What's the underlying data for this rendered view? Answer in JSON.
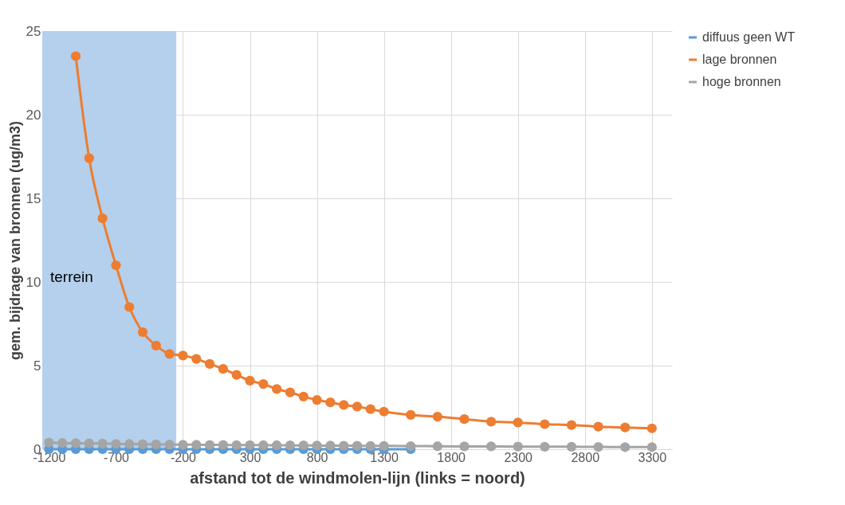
{
  "chart_data": {
    "type": "line",
    "xlabel": "afstand tot de windmolen-lijn  (links = noord)",
    "ylabel": "gem. bijdrage van bronnen  (ug/m3)",
    "x": [
      -1200,
      -1100,
      -1000,
      -900,
      -800,
      -700,
      -600,
      -500,
      -400,
      -300,
      -200,
      -100,
      0,
      100,
      200,
      300,
      400,
      500,
      600,
      700,
      800,
      900,
      1000,
      1100,
      1200,
      1300,
      1500,
      1700,
      1900,
      2100,
      2300,
      2500,
      2700,
      2900,
      3100,
      3300
    ],
    "series": [
      {
        "name": "diffuus geen WT",
        "color": "#5b9bd5",
        "values": [
          0,
          0,
          0,
          0,
          0,
          0,
          0,
          0,
          0,
          0,
          0,
          0,
          0,
          0,
          0,
          0,
          0,
          0,
          0,
          0,
          0,
          0,
          0,
          0,
          0,
          0,
          0,
          null,
          null,
          null,
          null,
          null,
          null,
          null,
          null,
          null
        ]
      },
      {
        "name": "lage bronnen",
        "color": "#ed7d31",
        "values": [
          null,
          null,
          23.5,
          17.4,
          13.8,
          11.0,
          8.5,
          7.0,
          6.2,
          5.7,
          5.6,
          5.4,
          5.1,
          4.8,
          4.45,
          4.1,
          3.9,
          3.6,
          3.4,
          3.15,
          2.95,
          2.8,
          2.65,
          2.55,
          2.4,
          2.25,
          2.05,
          1.95,
          1.8,
          1.65,
          1.6,
          1.5,
          1.45,
          1.35,
          1.3,
          1.25
        ]
      },
      {
        "name": "hoge bronnen",
        "color": "#a5a5a5",
        "values": [
          0.4,
          0.37,
          0.36,
          0.35,
          0.34,
          0.32,
          0.31,
          0.3,
          0.29,
          0.28,
          0.27,
          0.27,
          0.26,
          0.26,
          0.25,
          0.25,
          0.24,
          0.24,
          0.23,
          0.23,
          0.22,
          0.22,
          0.21,
          0.21,
          0.2,
          0.2,
          0.19,
          0.18,
          0.17,
          0.17,
          0.16,
          0.15,
          0.15,
          0.14,
          0.13,
          0.13
        ]
      }
    ],
    "xlim": [
      -1250,
      3450
    ],
    "xticks": [
      -1200,
      -700,
      -200,
      300,
      800,
      1300,
      1800,
      2300,
      2800,
      3300
    ],
    "ylim": [
      0,
      25
    ],
    "yticks": [
      0,
      5,
      10,
      15,
      20,
      25
    ],
    "bands": [
      {
        "axis": "x",
        "from": -1250,
        "to": -250,
        "label": "terrein",
        "color": "#b4d0ec"
      }
    ],
    "grid": true,
    "legend": "right",
    "marker": "circle"
  }
}
